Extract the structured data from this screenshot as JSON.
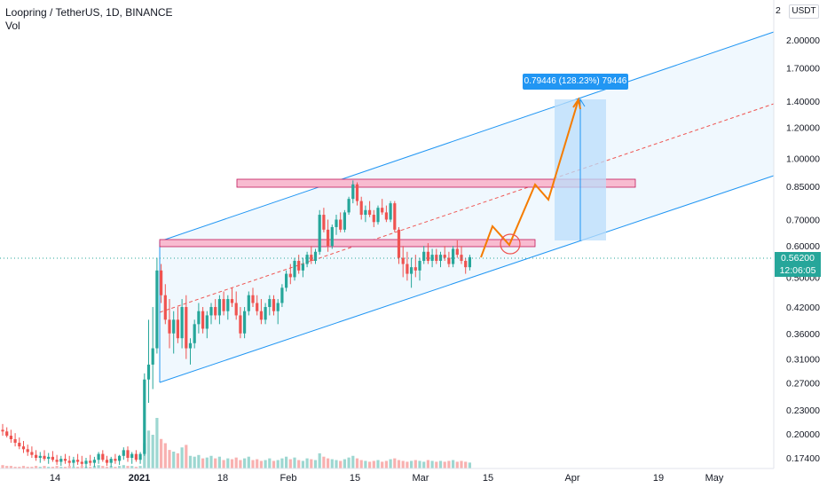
{
  "header": {
    "symbol_title": "Loopring / TetherUS, 1D, BINANCE",
    "volume_label": "Vol"
  },
  "price_axis": {
    "currency_label": "USDT",
    "currency_label_clipped": "2",
    "ticks": [
      "2.00000",
      "1.70000",
      "1.40000",
      "1.20000",
      "1.00000",
      "0.85000",
      "0.70000",
      "0.60000",
      "0.50000",
      "0.42000",
      "0.36000",
      "0.31000",
      "0.27000",
      "0.23000",
      "0.20000",
      "0.17400"
    ],
    "current_price": "0.56200",
    "countdown": "12:06:05"
  },
  "time_axis": {
    "ticks": [
      "14",
      "2021",
      "18",
      "Feb",
      "15",
      "Mar",
      "15",
      "Apr",
      "19",
      "May"
    ]
  },
  "measure_label": "0.79446 (128.23%) 79446",
  "colors": {
    "up": "#26a69a",
    "down": "#ef5350",
    "channel": "#2196f3",
    "channel_fill": "#e3f2fd",
    "zone_fill": "#f8bbd0",
    "zone_border": "#c2185b",
    "projection": "#f57c00",
    "measure_fill": "#bbdefb"
  },
  "chart_data": {
    "type": "candlestick",
    "scale": "log",
    "ylim": [
      0.16,
      2.3
    ],
    "price_ticks": [
      2.0,
      1.7,
      1.4,
      1.2,
      1.0,
      0.85,
      0.7,
      0.6,
      0.5,
      0.42,
      0.36,
      0.31,
      0.27,
      0.23,
      0.2,
      0.174
    ],
    "current_price": 0.562,
    "candles": [
      [
        0.205,
        0.212,
        0.198,
        0.203
      ],
      [
        0.203,
        0.208,
        0.196,
        0.198
      ],
      [
        0.198,
        0.205,
        0.19,
        0.194
      ],
      [
        0.194,
        0.201,
        0.186,
        0.19
      ],
      [
        0.19,
        0.196,
        0.183,
        0.186
      ],
      [
        0.186,
        0.192,
        0.179,
        0.183
      ],
      [
        0.183,
        0.188,
        0.176,
        0.18
      ],
      [
        0.18,
        0.186,
        0.174,
        0.177
      ],
      [
        0.177,
        0.182,
        0.171,
        0.174
      ],
      [
        0.174,
        0.18,
        0.169,
        0.176
      ],
      [
        0.176,
        0.182,
        0.171,
        0.173
      ],
      [
        0.173,
        0.179,
        0.168,
        0.175
      ],
      [
        0.175,
        0.181,
        0.17,
        0.172
      ],
      [
        0.172,
        0.177,
        0.167,
        0.17
      ],
      [
        0.17,
        0.176,
        0.166,
        0.173
      ],
      [
        0.173,
        0.178,
        0.168,
        0.171
      ],
      [
        0.171,
        0.176,
        0.166,
        0.169
      ],
      [
        0.169,
        0.175,
        0.165,
        0.172
      ],
      [
        0.172,
        0.178,
        0.167,
        0.17
      ],
      [
        0.17,
        0.176,
        0.166,
        0.168
      ],
      [
        0.168,
        0.174,
        0.164,
        0.171
      ],
      [
        0.171,
        0.177,
        0.166,
        0.169
      ],
      [
        0.169,
        0.175,
        0.165,
        0.172
      ],
      [
        0.172,
        0.18,
        0.168,
        0.178
      ],
      [
        0.178,
        0.182,
        0.17,
        0.172
      ],
      [
        0.172,
        0.176,
        0.166,
        0.169
      ],
      [
        0.169,
        0.175,
        0.165,
        0.173
      ],
      [
        0.173,
        0.178,
        0.168,
        0.171
      ],
      [
        0.171,
        0.177,
        0.167,
        0.176
      ],
      [
        0.176,
        0.185,
        0.172,
        0.182
      ],
      [
        0.182,
        0.186,
        0.17,
        0.174
      ],
      [
        0.174,
        0.18,
        0.168,
        0.178
      ],
      [
        0.178,
        0.182,
        0.17,
        0.172
      ],
      [
        0.172,
        0.18,
        0.168,
        0.178
      ],
      [
        0.178,
        0.285,
        0.176,
        0.275
      ],
      [
        0.275,
        0.39,
        0.24,
        0.3
      ],
      [
        0.3,
        0.42,
        0.26,
        0.33
      ],
      [
        0.33,
        0.56,
        0.32,
        0.52
      ],
      [
        0.52,
        0.54,
        0.43,
        0.45
      ],
      [
        0.45,
        0.48,
        0.38,
        0.39
      ],
      [
        0.39,
        0.44,
        0.33,
        0.36
      ],
      [
        0.36,
        0.41,
        0.32,
        0.39
      ],
      [
        0.39,
        0.42,
        0.34,
        0.35
      ],
      [
        0.35,
        0.44,
        0.33,
        0.42
      ],
      [
        0.42,
        0.45,
        0.31,
        0.33
      ],
      [
        0.33,
        0.35,
        0.3,
        0.34
      ],
      [
        0.34,
        0.39,
        0.33,
        0.38
      ],
      [
        0.38,
        0.43,
        0.36,
        0.41
      ],
      [
        0.41,
        0.42,
        0.36,
        0.37
      ],
      [
        0.37,
        0.41,
        0.35,
        0.4
      ],
      [
        0.4,
        0.43,
        0.38,
        0.42
      ],
      [
        0.42,
        0.44,
        0.39,
        0.4
      ],
      [
        0.4,
        0.45,
        0.38,
        0.44
      ],
      [
        0.44,
        0.46,
        0.4,
        0.41
      ],
      [
        0.41,
        0.45,
        0.39,
        0.44
      ],
      [
        0.44,
        0.47,
        0.42,
        0.43
      ],
      [
        0.43,
        0.46,
        0.39,
        0.4
      ],
      [
        0.4,
        0.42,
        0.35,
        0.36
      ],
      [
        0.36,
        0.42,
        0.35,
        0.41
      ],
      [
        0.41,
        0.46,
        0.4,
        0.45
      ],
      [
        0.45,
        0.47,
        0.42,
        0.43
      ],
      [
        0.43,
        0.45,
        0.4,
        0.41
      ],
      [
        0.41,
        0.44,
        0.38,
        0.39
      ],
      [
        0.39,
        0.43,
        0.38,
        0.42
      ],
      [
        0.42,
        0.45,
        0.4,
        0.44
      ],
      [
        0.44,
        0.45,
        0.4,
        0.41
      ],
      [
        0.41,
        0.44,
        0.38,
        0.43
      ],
      [
        0.43,
        0.48,
        0.42,
        0.47
      ],
      [
        0.47,
        0.52,
        0.46,
        0.51
      ],
      [
        0.51,
        0.54,
        0.48,
        0.5
      ],
      [
        0.5,
        0.56,
        0.49,
        0.55
      ],
      [
        0.55,
        0.57,
        0.51,
        0.52
      ],
      [
        0.52,
        0.56,
        0.5,
        0.54
      ],
      [
        0.54,
        0.58,
        0.53,
        0.57
      ],
      [
        0.57,
        0.6,
        0.54,
        0.55
      ],
      [
        0.55,
        0.59,
        0.54,
        0.58
      ],
      [
        0.58,
        0.74,
        0.57,
        0.72
      ],
      [
        0.72,
        0.75,
        0.65,
        0.66
      ],
      [
        0.66,
        0.7,
        0.58,
        0.6
      ],
      [
        0.6,
        0.68,
        0.59,
        0.67
      ],
      [
        0.67,
        0.72,
        0.64,
        0.7
      ],
      [
        0.7,
        0.73,
        0.65,
        0.66
      ],
      [
        0.66,
        0.74,
        0.65,
        0.73
      ],
      [
        0.73,
        0.8,
        0.72,
        0.79
      ],
      [
        0.79,
        0.88,
        0.77,
        0.86
      ],
      [
        0.86,
        0.87,
        0.76,
        0.78
      ],
      [
        0.78,
        0.8,
        0.7,
        0.72
      ],
      [
        0.72,
        0.76,
        0.69,
        0.74
      ],
      [
        0.74,
        0.78,
        0.71,
        0.72
      ],
      [
        0.72,
        0.74,
        0.67,
        0.69
      ],
      [
        0.69,
        0.76,
        0.68,
        0.75
      ],
      [
        0.75,
        0.79,
        0.72,
        0.73
      ],
      [
        0.73,
        0.76,
        0.69,
        0.7
      ],
      [
        0.7,
        0.78,
        0.69,
        0.77
      ],
      [
        0.77,
        0.78,
        0.65,
        0.66
      ],
      [
        0.66,
        0.67,
        0.54,
        0.56
      ],
      [
        0.56,
        0.6,
        0.5,
        0.54
      ],
      [
        0.54,
        0.58,
        0.49,
        0.51
      ],
      [
        0.51,
        0.56,
        0.47,
        0.53
      ],
      [
        0.53,
        0.57,
        0.5,
        0.52
      ],
      [
        0.52,
        0.56,
        0.49,
        0.55
      ],
      [
        0.55,
        0.6,
        0.54,
        0.58
      ],
      [
        0.58,
        0.61,
        0.54,
        0.55
      ],
      [
        0.55,
        0.59,
        0.53,
        0.57
      ],
      [
        0.57,
        0.59,
        0.54,
        0.55
      ],
      [
        0.55,
        0.58,
        0.53,
        0.57
      ],
      [
        0.57,
        0.6,
        0.55,
        0.56
      ],
      [
        0.56,
        0.58,
        0.53,
        0.54
      ],
      [
        0.54,
        0.6,
        0.53,
        0.59
      ],
      [
        0.59,
        0.62,
        0.56,
        0.57
      ],
      [
        0.57,
        0.6,
        0.54,
        0.55
      ],
      [
        0.55,
        0.56,
        0.51,
        0.53
      ],
      [
        0.53,
        0.57,
        0.52,
        0.562
      ]
    ],
    "volume": [
      4,
      3,
      3,
      2,
      2,
      3,
      2,
      2,
      3,
      2,
      3,
      2,
      2,
      3,
      2,
      2,
      3,
      2,
      2,
      3,
      2,
      2,
      3,
      4,
      3,
      2,
      3,
      2,
      3,
      4,
      3,
      3,
      2,
      3,
      30,
      45,
      40,
      60,
      35,
      30,
      22,
      20,
      18,
      25,
      28,
      15,
      14,
      16,
      12,
      13,
      15,
      12,
      14,
      10,
      12,
      11,
      13,
      10,
      12,
      14,
      10,
      11,
      9,
      10,
      12,
      9,
      10,
      12,
      14,
      11,
      13,
      10,
      9,
      12,
      11,
      10,
      18,
      14,
      12,
      11,
      10,
      9,
      11,
      13,
      15,
      12,
      10,
      9,
      8,
      9,
      10,
      8,
      9,
      11,
      12,
      10,
      9,
      8,
      9,
      10,
      9,
      8,
      10,
      9,
      8,
      9,
      8,
      9,
      10,
      8,
      9,
      8,
      7
    ]
  }
}
